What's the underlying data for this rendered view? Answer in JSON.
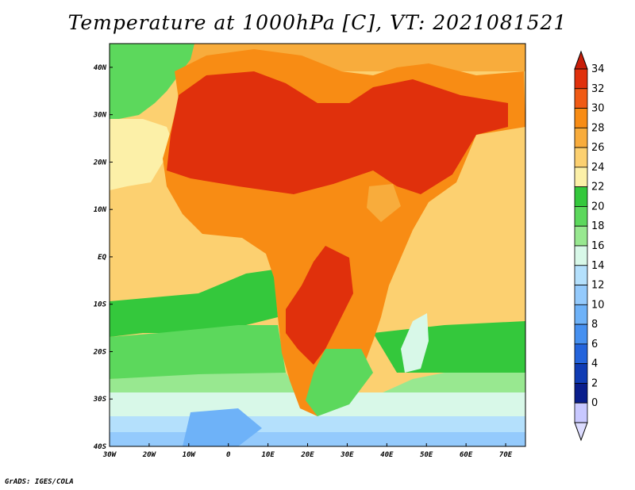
{
  "title": "Temperature at 1000hPa [C], VT: 2021081521",
  "credit": "GrADS: IGES/COLA",
  "map": {
    "variable": "Temperature at 1000hPa",
    "units": "C",
    "valid_time": "2021081521",
    "lon_range": [
      -30,
      75
    ],
    "lat_range": [
      -40,
      45
    ],
    "lon_ticks": [
      {
        "value": -30,
        "label": "30W"
      },
      {
        "value": -20,
        "label": "20W"
      },
      {
        "value": -10,
        "label": "10W"
      },
      {
        "value": 0,
        "label": "0"
      },
      {
        "value": 10,
        "label": "10E"
      },
      {
        "value": 20,
        "label": "20E"
      },
      {
        "value": 30,
        "label": "30E"
      },
      {
        "value": 40,
        "label": "40E"
      },
      {
        "value": 50,
        "label": "50E"
      },
      {
        "value": 60,
        "label": "60E"
      },
      {
        "value": 70,
        "label": "70E"
      }
    ],
    "lat_ticks": [
      {
        "value": 40,
        "label": "40N"
      },
      {
        "value": 30,
        "label": "30N"
      },
      {
        "value": 20,
        "label": "20N"
      },
      {
        "value": 10,
        "label": "10N"
      },
      {
        "value": 0,
        "label": "EQ"
      },
      {
        "value": -10,
        "label": "10S"
      },
      {
        "value": -20,
        "label": "20S"
      },
      {
        "value": -30,
        "label": "30S"
      },
      {
        "value": -40,
        "label": "40S"
      }
    ]
  },
  "colorbar": {
    "levels": [
      {
        "label": "34",
        "color": "#e0300c"
      },
      {
        "label": "32",
        "color": "#f05a14"
      },
      {
        "label": "30",
        "color": "#f88c14"
      },
      {
        "label": "28",
        "color": "#f8ac3c"
      },
      {
        "label": "26",
        "color": "#fcd070"
      },
      {
        "label": "24",
        "color": "#fcf0a8"
      },
      {
        "label": "22",
        "color": "#34c83c"
      },
      {
        "label": "20",
        "color": "#5cd85c"
      },
      {
        "label": "18",
        "color": "#98e890"
      },
      {
        "label": "16",
        "color": "#d8f8e8"
      },
      {
        "label": "14",
        "color": "#b4e0fc"
      },
      {
        "label": "12",
        "color": "#94cafc"
      },
      {
        "label": "10",
        "color": "#6eb2f8"
      },
      {
        "label": "8",
        "color": "#4690f0"
      },
      {
        "label": "6",
        "color": "#2464dc"
      },
      {
        "label": "4",
        "color": "#103cb4"
      },
      {
        "label": "2",
        "color": "#0a1e8c"
      },
      {
        "label": "0",
        "color": "#c8c8ff"
      }
    ],
    "top_triangle_color": "#c81e0a",
    "bottom_triangle_color": "#dcdcff"
  }
}
